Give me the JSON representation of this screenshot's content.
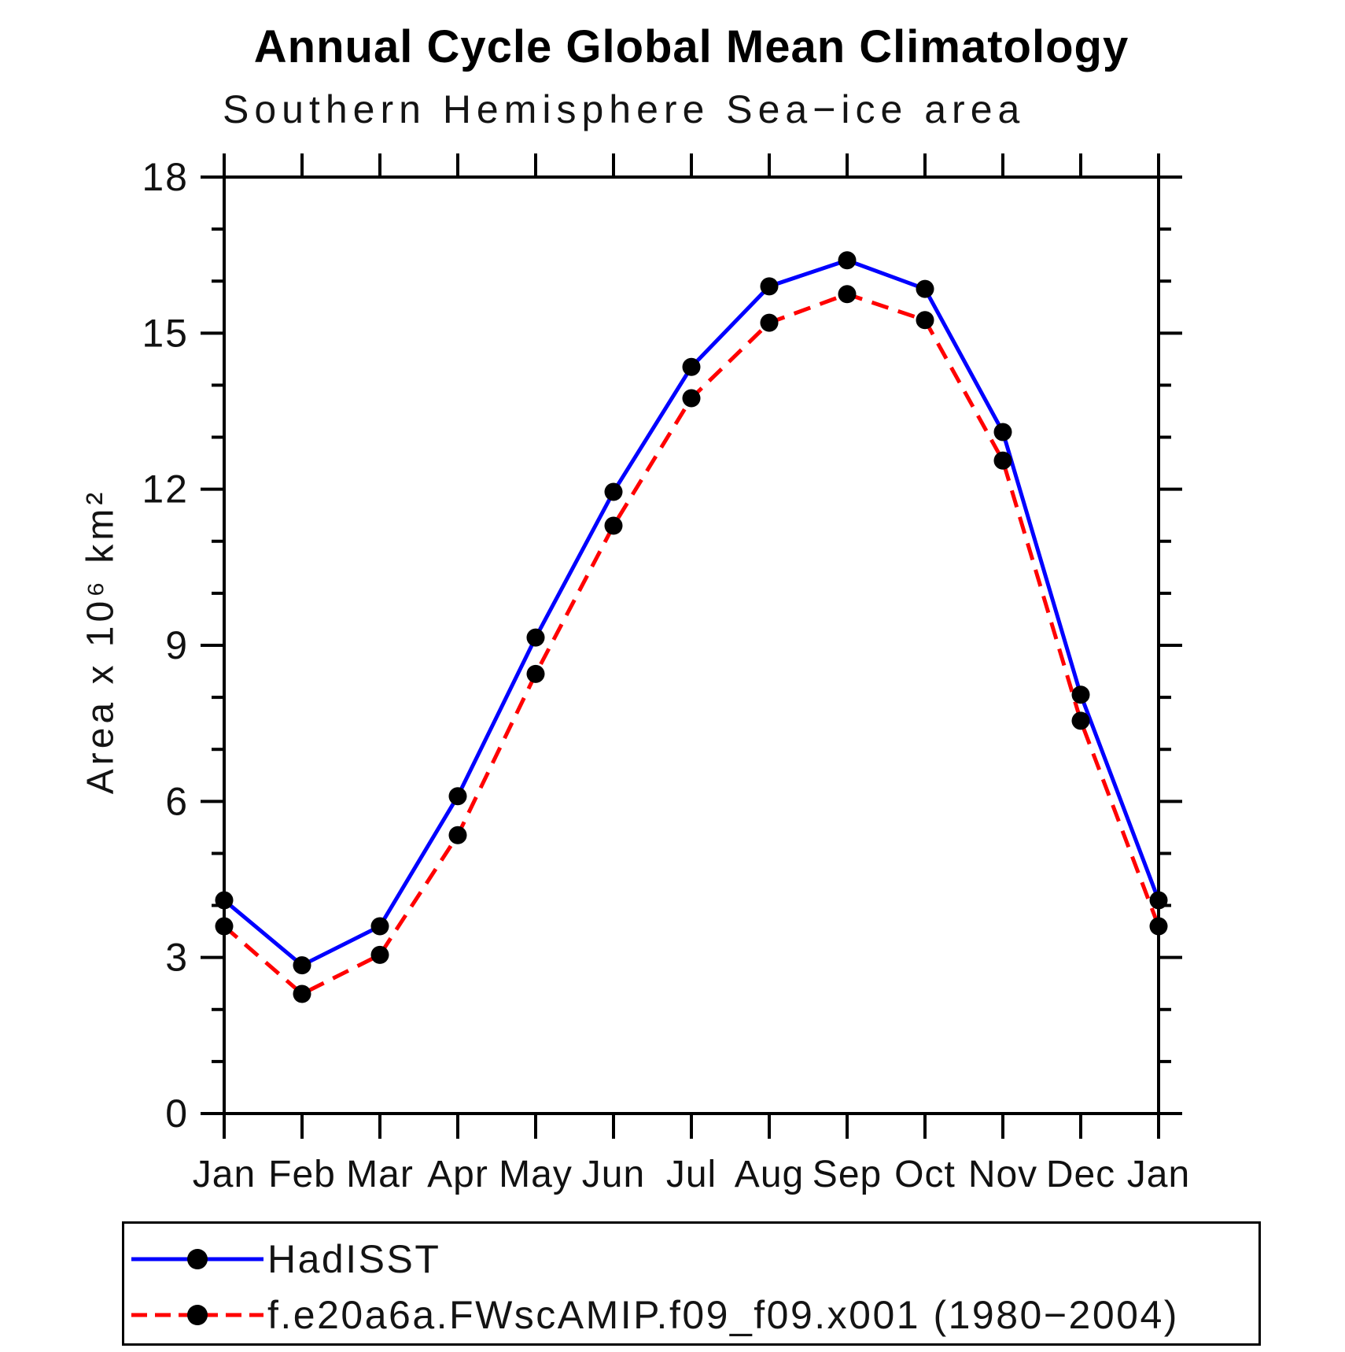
{
  "title": "Annual Cycle Global Mean Climatology",
  "subtitle": "Southern Hemisphere Sea−ice area",
  "y_axis_label": "Area x 10⁶ km²",
  "chart_data": {
    "type": "line",
    "title": "Annual Cycle Global Mean Climatology",
    "subtitle": "Southern Hemisphere Sea−ice area",
    "xlabel": "",
    "ylabel": "Area x 10⁶ km²",
    "categories": [
      "Jan",
      "Feb",
      "Mar",
      "Apr",
      "May",
      "Jun",
      "Jul",
      "Aug",
      "Sep",
      "Oct",
      "Nov",
      "Dec",
      "Jan"
    ],
    "ylim": [
      0,
      18
    ],
    "y_major_ticks": [
      0,
      3,
      6,
      9,
      12,
      15,
      18
    ],
    "y_minor_tick_step": 1,
    "grid": false,
    "legend_position": "bottom-left-box",
    "series": [
      {
        "name": "HadISST",
        "color": "#0000ff",
        "line_style": "solid",
        "marker": "filled-circle",
        "marker_color": "#000000",
        "values": [
          4.1,
          2.85,
          3.6,
          6.1,
          9.15,
          11.95,
          14.35,
          15.9,
          16.4,
          15.85,
          13.1,
          8.05,
          4.1
        ]
      },
      {
        "name": "f.e20a6a.FWscAMIP.f09_f09.x001 (1980−2004)",
        "color": "#ff0000",
        "line_style": "dashed",
        "marker": "filled-circle",
        "marker_color": "#000000",
        "values": [
          3.6,
          2.3,
          3.05,
          5.35,
          8.45,
          11.3,
          13.75,
          15.2,
          15.75,
          15.25,
          12.55,
          7.55,
          3.6
        ]
      }
    ]
  }
}
